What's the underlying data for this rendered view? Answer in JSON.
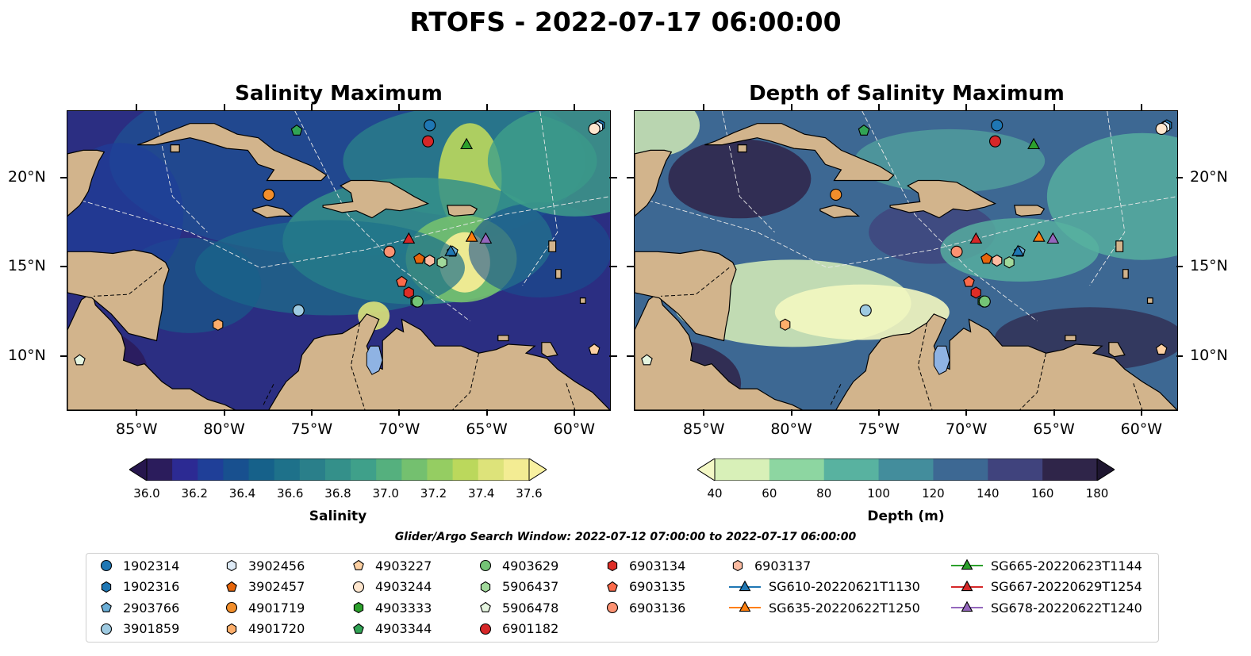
{
  "suptitle": "RTOFS - 2022-07-17 06:00:00",
  "panels": [
    {
      "id": "salinity",
      "title": "Salinity Maximum"
    },
    {
      "id": "depth",
      "title": "Depth of Salinity Maximum"
    }
  ],
  "map": {
    "lon_range": [
      -89,
      -58
    ],
    "lat_range": [
      7,
      23.8
    ],
    "lon_ticks": [
      {
        "value": -85,
        "label": "85°W"
      },
      {
        "value": -80,
        "label": "80°W"
      },
      {
        "value": -75,
        "label": "75°W"
      },
      {
        "value": -70,
        "label": "70°W"
      },
      {
        "value": -65,
        "label": "65°W"
      },
      {
        "value": -60,
        "label": "60°W"
      }
    ],
    "lat_ticks": [
      {
        "value": 20,
        "label": "20°N"
      },
      {
        "value": 15,
        "label": "15°N"
      },
      {
        "value": 10,
        "label": "10°N"
      }
    ],
    "land_color": "#d2b48c",
    "lake_color": "#8fb3e3"
  },
  "colorbars": [
    {
      "id": "salinity",
      "label": "Salinity",
      "range": [
        36.0,
        37.6
      ],
      "ticks": [
        "36.0",
        "36.2",
        "36.4",
        "36.6",
        "36.8",
        "37.0",
        "37.2",
        "37.4",
        "37.6"
      ],
      "colors": [
        "#2b1c5c",
        "#2c2a93",
        "#1f3f98",
        "#18508f",
        "#16618a",
        "#1e718a",
        "#2a7f8a",
        "#34908a",
        "#3fa08a",
        "#55b07e",
        "#74c06f",
        "#95cd62",
        "#bbd85c",
        "#dde37a",
        "#f3ec93"
      ]
    },
    {
      "id": "depth",
      "label": "Depth (m)",
      "range": [
        40,
        180
      ],
      "ticks": [
        "40",
        "60",
        "80",
        "100",
        "120",
        "140",
        "160",
        "180"
      ],
      "colors": [
        "#d8f0b8",
        "#8dd6a1",
        "#58b2a0",
        "#438d9c",
        "#3d6893",
        "#40437d",
        "#2f2549"
      ]
    }
  ],
  "search_window": "Glider/Argo Search Window: 2022-07-12 07:00:00 to 2022-07-17 06:00:00",
  "platforms": [
    {
      "name": "1902314",
      "marker": "circle",
      "color": "#1f77b4",
      "lon": -68.3,
      "lat": 23.0
    },
    {
      "name": "1902316",
      "marker": "hexagon",
      "color": "#1f77b4",
      "lon": -58.6,
      "lat": 23.0
    },
    {
      "name": "2903766",
      "marker": "pentagon",
      "color": "#6baed6",
      "lon": -67.0,
      "lat": 15.9
    },
    {
      "name": "3901859",
      "marker": "circle",
      "color": "#9ecae1",
      "lon": -75.8,
      "lat": 12.6
    },
    {
      "name": "3902456",
      "marker": "hexagon",
      "color": "#deebf7",
      "lon": -58.7,
      "lat": 22.9
    },
    {
      "name": "3902457",
      "marker": "pentagon",
      "color": "#e6650a",
      "lon": -68.9,
      "lat": 15.5
    },
    {
      "name": "4901719",
      "marker": "circle",
      "color": "#f28e2b",
      "lon": -77.5,
      "lat": 19.1
    },
    {
      "name": "4901720",
      "marker": "hexagon",
      "color": "#fdae6b",
      "lon": -80.4,
      "lat": 11.8
    },
    {
      "name": "4903227",
      "marker": "pentagon",
      "color": "#fdd0a2",
      "lon": -58.9,
      "lat": 10.4
    },
    {
      "name": "4903244",
      "marker": "circle",
      "color": "#fee6ce",
      "lon": -58.9,
      "lat": 22.8
    },
    {
      "name": "4903333",
      "marker": "hexagon",
      "color": "#2ca02c",
      "lon": -69.1,
      "lat": 13.1
    },
    {
      "name": "4903344",
      "marker": "pentagon",
      "color": "#31a354",
      "lon": -75.9,
      "lat": 22.7
    },
    {
      "name": "4903629",
      "marker": "circle",
      "color": "#74c476",
      "lon": -69.0,
      "lat": 13.1
    },
    {
      "name": "5906437",
      "marker": "hexagon",
      "color": "#a1d99b",
      "lon": -67.6,
      "lat": 15.3
    },
    {
      "name": "5906478",
      "marker": "pentagon",
      "color": "#e5f5e0",
      "lon": -88.3,
      "lat": 9.8
    },
    {
      "name": "6901182",
      "marker": "circle",
      "color": "#d62728",
      "lon": -68.4,
      "lat": 22.1
    },
    {
      "name": "6903134",
      "marker": "hexagon",
      "color": "#de2d26",
      "lon": -69.5,
      "lat": 13.6
    },
    {
      "name": "6903135",
      "marker": "pentagon",
      "color": "#fb6a4a",
      "lon": -69.9,
      "lat": 14.2
    },
    {
      "name": "6903136",
      "marker": "circle",
      "color": "#fc9272",
      "lon": -70.6,
      "lat": 15.9
    },
    {
      "name": "6903137",
      "marker": "hexagon",
      "color": "#fcbba1",
      "lon": -68.3,
      "lat": 15.4
    },
    {
      "name": "SG610-20220621T1130",
      "marker": "triangle",
      "color": "#1f77b4",
      "line": true,
      "lon": -67.1,
      "lat": 15.9
    },
    {
      "name": "SG635-20220622T1250",
      "marker": "triangle",
      "color": "#ff7f0e",
      "line": true,
      "lon": -65.9,
      "lat": 16.7
    },
    {
      "name": "SG665-20220623T1144",
      "marker": "triangle",
      "color": "#2ca02c",
      "line": true,
      "lon": -66.2,
      "lat": 21.9
    },
    {
      "name": "SG667-20220629T1254",
      "marker": "triangle",
      "color": "#d62728",
      "line": true,
      "lon": -69.5,
      "lat": 16.6
    },
    {
      "name": "SG678-20220622T1240",
      "marker": "triangle",
      "color": "#9467bd",
      "line": true,
      "lon": -65.1,
      "lat": 16.6
    }
  ]
}
